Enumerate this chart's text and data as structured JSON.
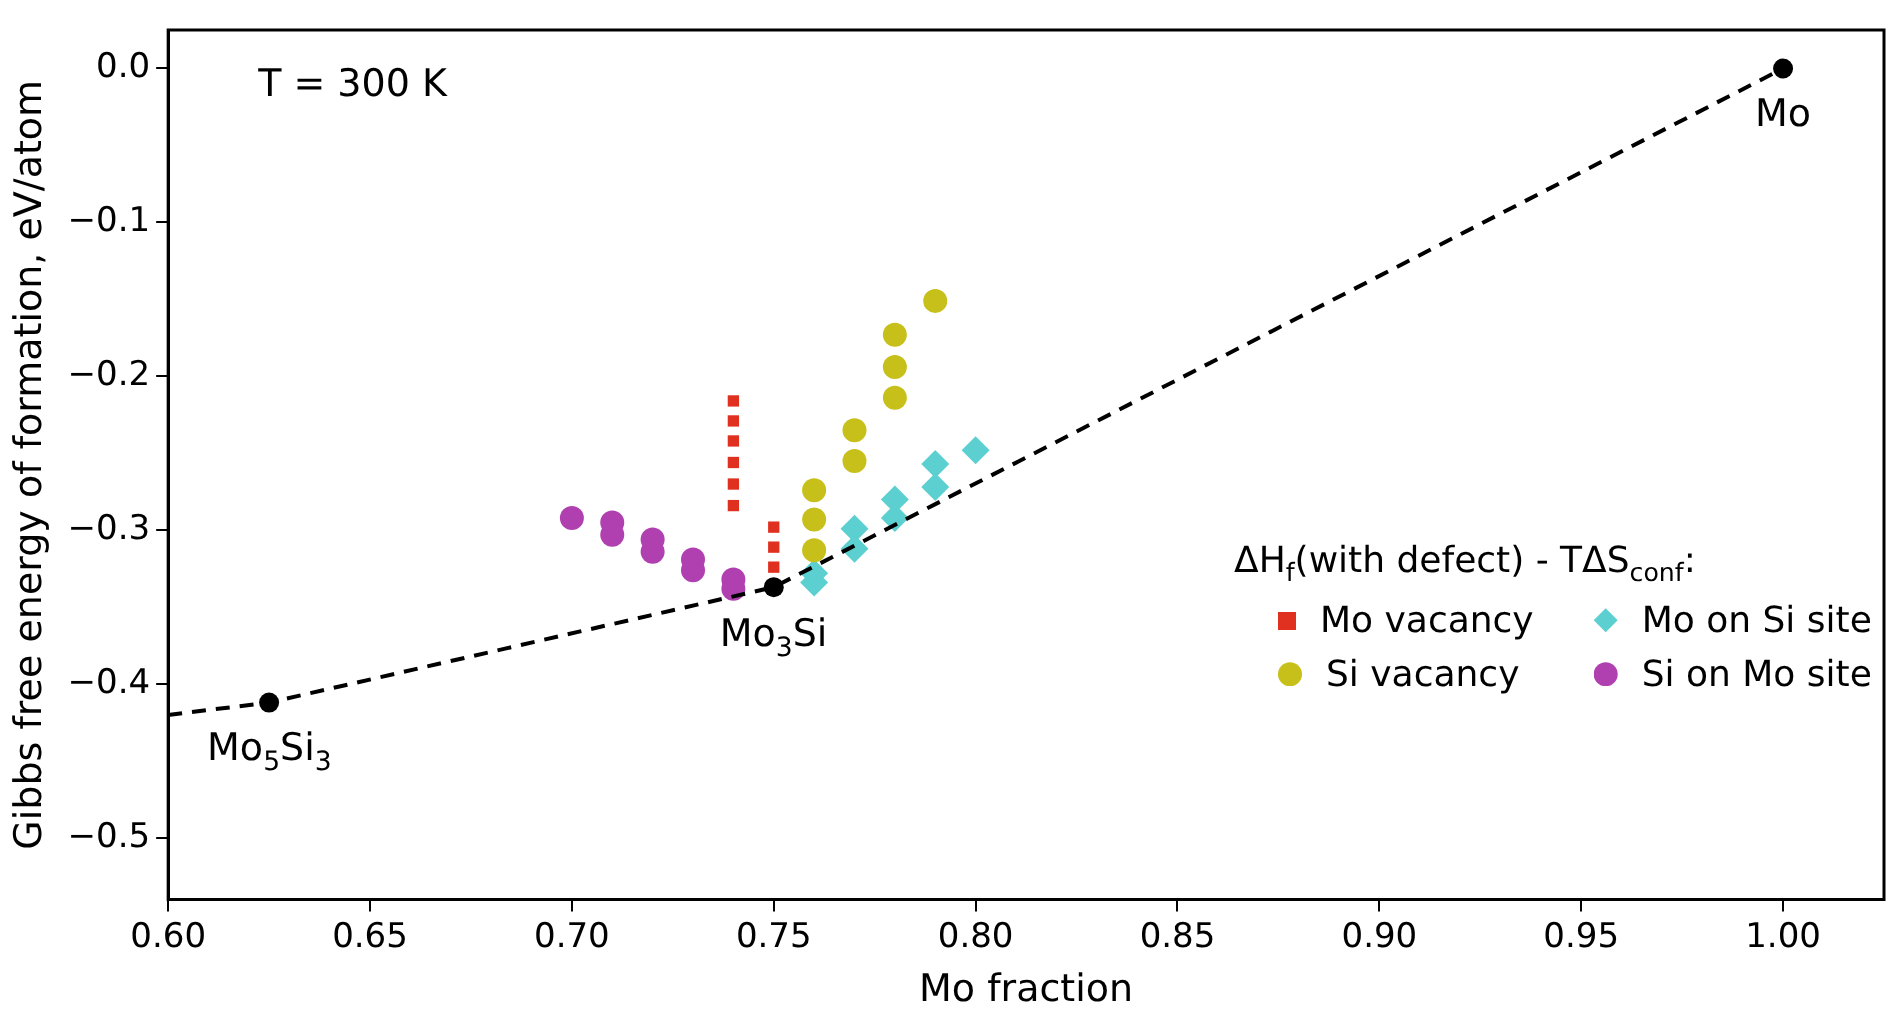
{
  "chart_data": {
    "type": "scatter",
    "xlabel": "Mo fraction",
    "ylabel": "Gibbs free energy of formation, eV/atom",
    "legend_title": "ΔH$_{f}$(with defect) - TΔS$_{conf}$:",
    "legend": "bottom right",
    "grid": false,
    "xlim": [
      0.6,
      1.025
    ],
    "ylim": [
      -0.54,
      0.025
    ],
    "xticks": [
      {
        "value": 0.6,
        "label": "0.60"
      },
      {
        "value": 0.65,
        "label": "0.65"
      },
      {
        "value": 0.7,
        "label": "0.70"
      },
      {
        "value": 0.75,
        "label": "0.75"
      },
      {
        "value": 0.8,
        "label": "0.80"
      },
      {
        "value": 0.85,
        "label": "0.85"
      },
      {
        "value": 0.9,
        "label": "0.90"
      },
      {
        "value": 0.95,
        "label": "0.95"
      },
      {
        "value": 1.0,
        "label": "1.00"
      }
    ],
    "yticks": [
      {
        "value": 0,
        "label": "0.0"
      },
      {
        "value": -0.1,
        "label": "−0.1"
      },
      {
        "value": -0.2,
        "label": "−0.2"
      },
      {
        "value": -0.3,
        "label": "−0.3"
      },
      {
        "value": -0.4,
        "label": "−0.4"
      },
      {
        "value": -0.5,
        "label": "−0.5"
      }
    ],
    "series": [
      {
        "type": "line",
        "color": "#000000",
        "line_style": "dashed",
        "marker": "circle",
        "x": [
          0.6,
          0.625,
          0.75,
          1.0
        ],
        "values": [
          -0.42,
          -0.412,
          -0.337,
          0
        ]
      },
      {
        "name": "Mo vacancy",
        "color": "#e03020",
        "marker": "square",
        "x": [
          0.74,
          0.74,
          0.74,
          0.74,
          0.74,
          0.74,
          0.75,
          0.75,
          0.75
        ],
        "values": [
          -0.216,
          -0.229,
          -0.242,
          -0.256,
          -0.27,
          -0.284,
          -0.298,
          -0.311,
          -0.324
        ]
      },
      {
        "name": "Si vacancy",
        "color": "#c8c01a",
        "x": [
          0.76,
          0.76,
          0.76,
          0.77,
          0.77,
          0.78,
          0.78,
          0.78,
          0.79
        ],
        "values": [
          -0.274,
          -0.293,
          -0.313,
          -0.235,
          -0.255,
          -0.173,
          -0.194,
          -0.214,
          -0.151
        ]
      },
      {
        "name": "Mo on Si site",
        "color": "#5ccfd0",
        "marker": "diamond",
        "x": [
          0.76,
          0.76,
          0.77,
          0.77,
          0.78,
          0.78,
          0.79,
          0.79,
          0.8
        ],
        "values": [
          -0.328,
          -0.334,
          -0.299,
          -0.312,
          -0.28,
          -0.292,
          -0.257,
          -0.272,
          -0.248
        ]
      },
      {
        "name": "Si on Mo site",
        "color": "#b040b0",
        "x": [
          0.7,
          0.71,
          0.71,
          0.72,
          0.72,
          0.73,
          0.73,
          0.74,
          0.74
        ],
        "values": [
          -0.292,
          -0.295,
          -0.303,
          -0.306,
          -0.314,
          -0.319,
          -0.326,
          -0.332,
          -0.338
        ]
      }
    ],
    "annotations": [
      "T = 300 K",
      {
        "text": "Mo$_{5}$Si$_{3}$",
        "x": 0.625,
        "y": -0.412
      },
      {
        "text": "Mo$_{3}$Si",
        "x": 0.75,
        "y": -0.337
      },
      {
        "text": "Mo",
        "x": 1.0,
        "y": 0
      }
    ]
  }
}
